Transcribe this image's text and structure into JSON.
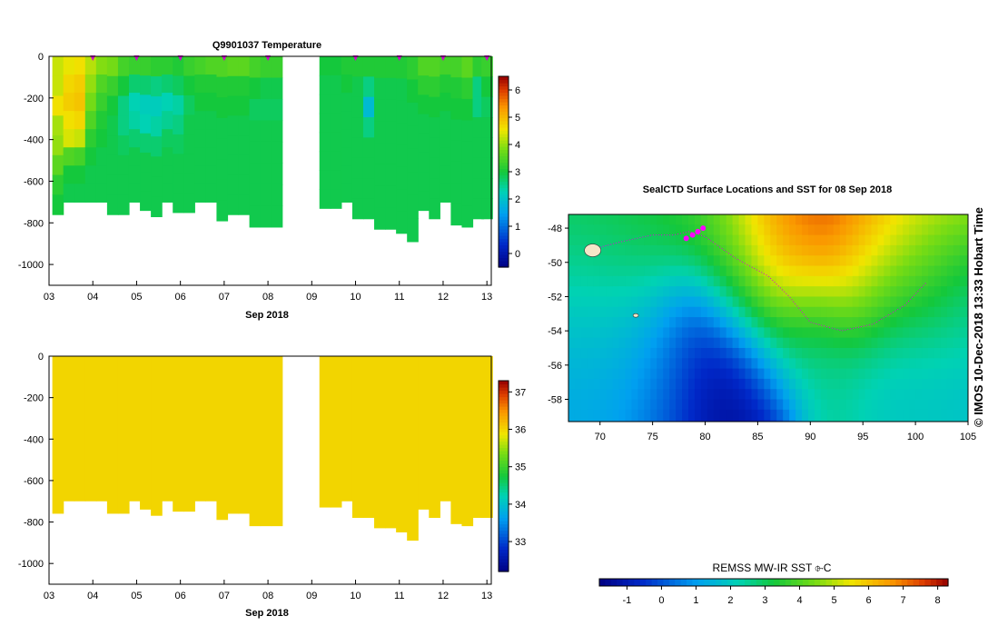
{
  "chart_data": [
    {
      "type": "heatmap",
      "name": "temperature-section",
      "title": "Q9901037  Temperature",
      "xlabel": "Sep 2018",
      "ylabel": "",
      "x_ticks": [
        "03",
        "04",
        "05",
        "06",
        "07",
        "08",
        "09",
        "10",
        "11",
        "12",
        "13"
      ],
      "xlim_days": [
        3,
        13.1
      ],
      "ylim": [
        -1100,
        0
      ],
      "y_ticks": [
        0,
        -200,
        -400,
        -600,
        -800,
        -1000
      ],
      "y_tick_labels": [
        "0",
        "-200",
        "-400",
        "-600",
        "-800",
        "-1000"
      ],
      "colorbar": {
        "range": [
          -0.5,
          6.5
        ],
        "ticks": [
          0,
          1,
          2,
          3,
          4,
          5,
          6
        ],
        "tick_labels": [
          "0",
          "1",
          "2",
          "3",
          "4",
          "5",
          "6"
        ]
      },
      "surfacing_markers_days": [
        4,
        5,
        6,
        7,
        8,
        10,
        11,
        12,
        13
      ],
      "profiles": [
        {
          "day": 3.2,
          "depth": 760,
          "temps": [
            4.3,
            4.3,
            4.6,
            4.1,
            4.0,
            3.6,
            3.2,
            3.0
          ]
        },
        {
          "day": 3.45,
          "depth": 700,
          "temps": [
            4.5,
            4.7,
            4.8,
            4.6,
            4.4,
            3.5,
            3.0,
            2.9
          ]
        },
        {
          "day": 3.7,
          "depth": 700,
          "temps": [
            4.6,
            4.8,
            4.9,
            4.7,
            4.3,
            3.4,
            3.0,
            2.9
          ]
        },
        {
          "day": 3.95,
          "depth": 700,
          "temps": [
            4.2,
            4.0,
            3.8,
            3.5,
            3.2,
            3.0,
            2.9,
            2.9
          ]
        },
        {
          "day": 4.2,
          "depth": 700,
          "temps": [
            3.9,
            3.5,
            3.3,
            3.1,
            3.0,
            2.9,
            2.9,
            2.9
          ]
        },
        {
          "day": 4.45,
          "depth": 760,
          "temps": [
            3.8,
            3.3,
            3.0,
            2.9,
            2.9,
            2.9,
            2.9,
            2.9
          ]
        },
        {
          "day": 4.7,
          "depth": 760,
          "temps": [
            3.4,
            3.0,
            2.6,
            2.6,
            2.8,
            2.9,
            2.9,
            2.9
          ]
        },
        {
          "day": 4.95,
          "depth": 700,
          "temps": [
            3.3,
            2.7,
            2.3,
            2.4,
            2.7,
            2.9,
            2.9,
            2.9
          ]
        },
        {
          "day": 5.2,
          "depth": 740,
          "temps": [
            3.3,
            2.7,
            2.2,
            2.3,
            2.7,
            2.9,
            2.9,
            2.9
          ]
        },
        {
          "day": 5.45,
          "depth": 770,
          "temps": [
            3.2,
            2.6,
            2.2,
            2.4,
            2.7,
            2.9,
            2.9,
            2.9
          ]
        },
        {
          "day": 5.7,
          "depth": 700,
          "temps": [
            3.2,
            2.7,
            2.3,
            2.5,
            2.8,
            2.9,
            2.9,
            2.9
          ]
        },
        {
          "day": 5.95,
          "depth": 750,
          "temps": [
            3.1,
            2.8,
            2.4,
            2.6,
            2.8,
            2.9,
            2.9,
            2.9
          ]
        },
        {
          "day": 6.2,
          "depth": 750,
          "temps": [
            3.3,
            3.0,
            2.8,
            2.9,
            2.9,
            2.9,
            2.9,
            2.9
          ]
        },
        {
          "day": 6.45,
          "depth": 700,
          "temps": [
            3.4,
            3.1,
            3.0,
            2.9,
            2.9,
            2.9,
            2.9,
            2.9
          ]
        },
        {
          "day": 6.7,
          "depth": 700,
          "temps": [
            3.5,
            3.1,
            3.0,
            2.9,
            2.9,
            2.9,
            2.9,
            2.9
          ]
        },
        {
          "day": 6.95,
          "depth": 790,
          "temps": [
            3.5,
            3.1,
            3.0,
            2.9,
            2.9,
            2.9,
            2.9,
            2.9
          ]
        },
        {
          "day": 7.2,
          "depth": 760,
          "temps": [
            3.6,
            3.1,
            3.0,
            2.9,
            2.9,
            2.9,
            2.9,
            2.9
          ]
        },
        {
          "day": 7.45,
          "depth": 760,
          "temps": [
            3.6,
            3.1,
            3.0,
            2.9,
            2.9,
            2.9,
            2.9,
            2.9
          ]
        },
        {
          "day": 7.7,
          "depth": 820,
          "temps": [
            3.4,
            3.0,
            2.8,
            2.9,
            2.9,
            2.9,
            2.9,
            2.9
          ]
        },
        {
          "day": 7.95,
          "depth": 820,
          "temps": [
            3.3,
            2.9,
            2.8,
            2.9,
            2.9,
            2.9,
            2.9,
            2.9
          ]
        },
        {
          "day": 8.2,
          "depth": 820,
          "temps": [
            3.3,
            2.9,
            2.8,
            2.9,
            2.9,
            2.9,
            2.9,
            2.9
          ]
        },
        {
          "day": 9.3,
          "depth": 730,
          "temps": [
            3.0,
            2.9,
            2.9,
            2.9,
            2.9,
            2.9,
            2.9,
            2.9
          ]
        },
        {
          "day": 9.55,
          "depth": 730,
          "temps": [
            3.0,
            2.9,
            2.9,
            2.9,
            2.9,
            2.9,
            2.9,
            2.9
          ]
        },
        {
          "day": 9.8,
          "depth": 700,
          "temps": [
            3.1,
            3.0,
            2.9,
            2.9,
            2.9,
            2.9,
            2.9,
            2.9
          ]
        },
        {
          "day": 10.05,
          "depth": 780,
          "temps": [
            3.1,
            2.9,
            2.9,
            2.9,
            2.9,
            2.9,
            2.9,
            2.9
          ]
        },
        {
          "day": 10.3,
          "depth": 780,
          "temps": [
            3.1,
            2.6,
            1.9,
            2.6,
            2.9,
            2.9,
            2.9,
            2.9
          ]
        },
        {
          "day": 10.55,
          "depth": 830,
          "temps": [
            3.1,
            2.9,
            2.9,
            2.9,
            2.9,
            2.9,
            2.9,
            2.9
          ]
        },
        {
          "day": 10.8,
          "depth": 830,
          "temps": [
            3.1,
            2.9,
            2.9,
            2.9,
            2.9,
            2.9,
            2.9,
            2.9
          ]
        },
        {
          "day": 11.05,
          "depth": 850,
          "temps": [
            3.1,
            2.9,
            2.9,
            2.9,
            2.9,
            2.9,
            2.9,
            2.9
          ]
        },
        {
          "day": 11.3,
          "depth": 890,
          "temps": [
            3.2,
            3.0,
            2.9,
            2.9,
            2.9,
            2.9,
            2.9,
            2.9
          ]
        },
        {
          "day": 11.55,
          "depth": 740,
          "temps": [
            3.5,
            3.2,
            3.0,
            2.9,
            2.9,
            2.9,
            2.9,
            2.9
          ]
        },
        {
          "day": 11.8,
          "depth": 780,
          "temps": [
            3.5,
            3.2,
            3.0,
            2.9,
            2.9,
            2.9,
            2.9,
            2.9
          ]
        },
        {
          "day": 12.05,
          "depth": 700,
          "temps": [
            3.4,
            3.1,
            3.0,
            2.9,
            2.9,
            2.9,
            2.9,
            2.9
          ]
        },
        {
          "day": 12.3,
          "depth": 810,
          "temps": [
            3.4,
            3.1,
            3.0,
            2.9,
            2.9,
            2.9,
            2.9,
            2.9
          ]
        },
        {
          "day": 12.55,
          "depth": 820,
          "temps": [
            3.6,
            3.2,
            3.0,
            2.9,
            2.9,
            2.9,
            2.9,
            2.9
          ]
        },
        {
          "day": 12.8,
          "depth": 780,
          "temps": [
            3.2,
            2.6,
            2.6,
            2.9,
            2.9,
            2.9,
            2.9,
            2.9
          ]
        },
        {
          "day": 13.0,
          "depth": 780,
          "temps": [
            3.3,
            3.0,
            2.8,
            2.9,
            2.9,
            2.9,
            2.9,
            2.9
          ]
        }
      ]
    },
    {
      "type": "heatmap",
      "name": "salinity-section",
      "title": "",
      "xlabel": "Sep 2018",
      "x_ticks": [
        "03",
        "04",
        "05",
        "06",
        "07",
        "08",
        "09",
        "10",
        "11",
        "12",
        "13"
      ],
      "xlim_days": [
        3,
        13.1
      ],
      "ylim": [
        -1100,
        0
      ],
      "y_ticks": [
        0,
        -200,
        -400,
        -600,
        -800,
        -1000
      ],
      "y_tick_labels": [
        "0",
        "-200",
        "-400",
        "-600",
        "-800",
        "-1000"
      ],
      "colorbar": {
        "range": [
          32.2,
          37.3
        ],
        "ticks": [
          33,
          34,
          35,
          36,
          37
        ],
        "tick_labels": [
          "33",
          "34",
          "35",
          "36",
          "37"
        ]
      },
      "uniform_value": 36.0
    },
    {
      "type": "heatmap",
      "name": "sst-map",
      "title": "SealCTD Surface Locations and SST for 08 Sep 2018",
      "side_label": "© IMOS 10-Dec-2018 13:33 Hobart Time",
      "x_ticks": [
        "70",
        "75",
        "80",
        "85",
        "90",
        "95",
        "100",
        "105"
      ],
      "xlim_lon": [
        67,
        105
      ],
      "ylim_lat": [
        -59.3,
        -47.2
      ],
      "y_ticks": [
        -48,
        -50,
        -52,
        -54,
        -56,
        -58
      ],
      "y_tick_labels": [
        "-48",
        "-50",
        "-52",
        "-54",
        "-56",
        "-58"
      ],
      "colorbar": {
        "label": "REMSS MW-IR SST ⌱C",
        "range": [
          -1.8,
          8.3
        ],
        "ticks": [
          -1,
          0,
          1,
          2,
          3,
          4,
          5,
          6,
          7,
          8
        ],
        "tick_labels": [
          "-1",
          "0",
          "1",
          "2",
          "3",
          "4",
          "5",
          "6",
          "7",
          "8"
        ]
      },
      "sst_blobs": [
        {
          "lon": 70,
          "lat": -48,
          "sst": 3.2,
          "r": 3.5
        },
        {
          "lon": 74,
          "lat": -48.5,
          "sst": 3.4,
          "r": 3
        },
        {
          "lon": 79,
          "lat": -48,
          "sst": 3.6,
          "r": 3
        },
        {
          "lon": 84,
          "lat": -48.5,
          "sst": 5.2,
          "r": 3
        },
        {
          "lon": 88,
          "lat": -48,
          "sst": 7.2,
          "r": 3
        },
        {
          "lon": 92,
          "lat": -47.8,
          "sst": 7.8,
          "r": 3.5
        },
        {
          "lon": 97,
          "lat": -48.5,
          "sst": 6.3,
          "r": 3.5
        },
        {
          "lon": 102,
          "lat": -48.5,
          "sst": 5.2,
          "r": 3.5
        },
        {
          "lon": 88,
          "lat": -51,
          "sst": 5.8,
          "r": 2.5
        },
        {
          "lon": 95,
          "lat": -51,
          "sst": 5.6,
          "r": 2.5
        },
        {
          "lon": 100,
          "lat": -51.5,
          "sst": 4.2,
          "r": 3
        },
        {
          "lon": 83,
          "lat": -51.5,
          "sst": 3.8,
          "r": 2.5
        },
        {
          "lon": 70,
          "lat": -52,
          "sst": 2.2,
          "r": 3.5
        },
        {
          "lon": 70,
          "lat": -56,
          "sst": 1.1,
          "r": 3.5
        },
        {
          "lon": 75,
          "lat": -54,
          "sst": 1.6,
          "r": 3
        },
        {
          "lon": 76,
          "lat": -57,
          "sst": 0.5,
          "r": 3
        },
        {
          "lon": 80,
          "lat": -55,
          "sst": -1.2,
          "r": 3
        },
        {
          "lon": 81,
          "lat": -57.5,
          "sst": -1.5,
          "r": 3.5
        },
        {
          "lon": 85,
          "lat": -58.5,
          "sst": -1.3,
          "r": 2.5
        },
        {
          "lon": 87,
          "lat": -55,
          "sst": 2.8,
          "r": 2.5
        },
        {
          "lon": 90,
          "lat": -54,
          "sst": 2.2,
          "r": 2.5
        },
        {
          "lon": 92,
          "lat": -57,
          "sst": 2.5,
          "r": 3
        },
        {
          "lon": 97,
          "lat": -54,
          "sst": 1.6,
          "r": 3
        },
        {
          "lon": 101,
          "lat": -55,
          "sst": 1.4,
          "r": 3.5
        },
        {
          "lon": 100,
          "lat": -58,
          "sst": 2.2,
          "r": 3
        },
        {
          "lon": 104,
          "lat": -52,
          "sst": 2.0,
          "r": 2.5
        }
      ],
      "track": [
        {
          "lon": 69.5,
          "lat": -49.2
        },
        {
          "lon": 72,
          "lat": -48.8
        },
        {
          "lon": 75,
          "lat": -48.4
        },
        {
          "lon": 77,
          "lat": -48.4
        },
        {
          "lon": 78.5,
          "lat": -48.2
        },
        {
          "lon": 80,
          "lat": -48.5
        },
        {
          "lon": 83,
          "lat": -49.8
        },
        {
          "lon": 86,
          "lat": -50.8
        },
        {
          "lon": 88,
          "lat": -52
        },
        {
          "lon": 90,
          "lat": -53.5
        },
        {
          "lon": 93,
          "lat": -54
        },
        {
          "lon": 96,
          "lat": -53.6
        },
        {
          "lon": 99,
          "lat": -52.5
        },
        {
          "lon": 101,
          "lat": -51.2
        }
      ],
      "surface_points": [
        {
          "lon": 78.2,
          "lat": -48.6
        },
        {
          "lon": 78.8,
          "lat": -48.4
        },
        {
          "lon": 79.3,
          "lat": -48.2
        },
        {
          "lon": 79.8,
          "lat": -48.0
        }
      ]
    }
  ]
}
